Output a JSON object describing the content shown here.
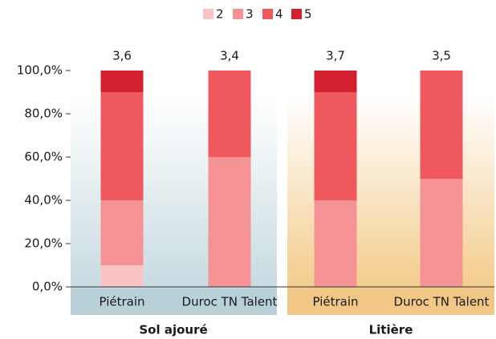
{
  "chart_data": {
    "type": "stacked_bar",
    "categories": [
      "Piétrain",
      "Duroc TN Talent",
      "Piétrain",
      "Duroc TN Talent"
    ],
    "groups": [
      "Sol ajouré",
      "Litière"
    ],
    "series": [
      {
        "name": "2",
        "color": "#f8c3c5",
        "values": [
          10,
          0,
          0,
          0
        ]
      },
      {
        "name": "3",
        "color": "#f49296",
        "values": [
          30,
          60,
          40,
          50
        ]
      },
      {
        "name": "4",
        "color": "#ef595d",
        "values": [
          50,
          40,
          50,
          50
        ]
      },
      {
        "name": "5",
        "color": "#d3202e",
        "values": [
          10,
          0,
          10,
          0
        ]
      }
    ],
    "annotations": {
      "values": [
        3.6,
        3.4,
        3.7,
        3.5
      ],
      "value_labels": [
        "3,6",
        "3,4",
        "3,7",
        "3,5"
      ]
    },
    "ylim": [
      0,
      100
    ],
    "yticks": [
      {
        "value": 0,
        "label": "0,0%"
      },
      {
        "value": 20,
        "label": "20,0%"
      },
      {
        "value": 40,
        "label": "40,0%"
      },
      {
        "value": 60,
        "label": "60,0%"
      },
      {
        "value": 80,
        "label": "80,0%"
      },
      {
        "value": 100,
        "label": "100,0%"
      }
    ],
    "grid": false
  }
}
